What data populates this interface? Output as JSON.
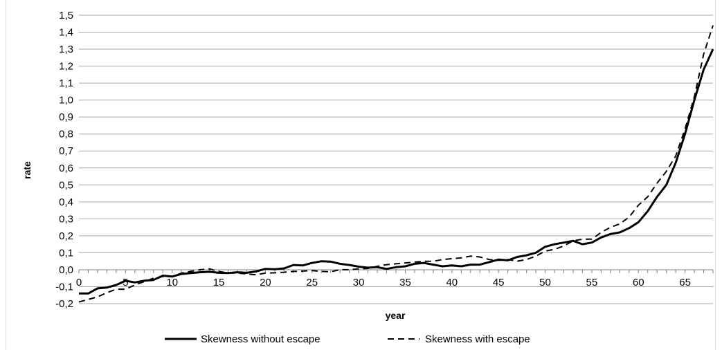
{
  "chart_data": {
    "type": "line",
    "title": "",
    "xlabel": "year",
    "ylabel": "rate",
    "xlim": [
      0,
      68
    ],
    "ylim": [
      -0.2,
      1.5
    ],
    "x_ticks": [
      0,
      5,
      10,
      15,
      20,
      25,
      30,
      35,
      40,
      45,
      50,
      55,
      60,
      65
    ],
    "x_tick_labels": [
      "0",
      "5",
      "10",
      "15",
      "20",
      "25",
      "30",
      "35",
      "40",
      "45",
      "50",
      "55",
      "60",
      "65"
    ],
    "y_ticks": [
      -0.2,
      -0.1,
      0.0,
      0.1,
      0.2,
      0.3,
      0.4,
      0.5,
      0.6,
      0.7,
      0.8,
      0.9,
      1.0,
      1.1,
      1.2,
      1.3,
      1.4,
      1.5
    ],
    "y_tick_labels": [
      "-0,2",
      "-0,1",
      "0,0",
      "0,1",
      "0,2",
      "0,3",
      "0,4",
      "0,5",
      "0,6",
      "0,7",
      "0,8",
      "0,9",
      "1,0",
      "1,1",
      "1,2",
      "1,3",
      "1,4",
      "1,5"
    ],
    "grid": "horizontal",
    "legend_position": "bottom",
    "series": [
      {
        "name": "Skewness without escape",
        "style": "solid",
        "color": "#000000",
        "x": [
          0,
          1,
          2,
          3,
          4,
          5,
          6,
          7,
          8,
          9,
          10,
          11,
          12,
          13,
          14,
          15,
          16,
          17,
          18,
          19,
          20,
          21,
          22,
          23,
          24,
          25,
          26,
          27,
          28,
          29,
          30,
          31,
          32,
          33,
          34,
          35,
          36,
          37,
          38,
          39,
          40,
          41,
          42,
          43,
          44,
          45,
          46,
          47,
          48,
          49,
          50,
          51,
          52,
          53,
          54,
          55,
          56,
          57,
          58,
          59,
          60,
          61,
          62,
          63,
          64,
          65,
          66,
          67,
          68
        ],
        "values": [
          -0.14,
          -0.14,
          -0.11,
          -0.105,
          -0.09,
          -0.065,
          -0.075,
          -0.065,
          -0.06,
          -0.035,
          -0.04,
          -0.025,
          -0.02,
          -0.015,
          -0.012,
          -0.018,
          -0.02,
          -0.015,
          -0.018,
          -0.01,
          0.005,
          0.003,
          0.008,
          0.028,
          0.025,
          0.04,
          0.05,
          0.048,
          0.035,
          0.028,
          0.018,
          0.012,
          0.015,
          0.005,
          0.015,
          0.02,
          0.035,
          0.04,
          0.03,
          0.02,
          0.025,
          0.02,
          0.03,
          0.03,
          0.045,
          0.06,
          0.055,
          0.075,
          0.085,
          0.1,
          0.135,
          0.15,
          0.16,
          0.17,
          0.15,
          0.16,
          0.19,
          0.21,
          0.22,
          0.245,
          0.28,
          0.345,
          0.43,
          0.5,
          0.63,
          0.8,
          1.0,
          1.18,
          1.3
        ]
      },
      {
        "name": "Skewness with escape",
        "style": "dashed",
        "color": "#000000",
        "x": [
          0,
          1,
          2,
          3,
          4,
          5,
          6,
          7,
          8,
          9,
          10,
          11,
          12,
          13,
          14,
          15,
          16,
          17,
          18,
          19,
          20,
          21,
          22,
          23,
          24,
          25,
          26,
          27,
          28,
          29,
          30,
          31,
          32,
          33,
          34,
          35,
          36,
          37,
          38,
          39,
          40,
          41,
          42,
          43,
          44,
          45,
          46,
          47,
          48,
          49,
          50,
          51,
          52,
          53,
          54,
          55,
          56,
          57,
          58,
          59,
          60,
          61,
          62,
          63,
          64,
          65,
          66,
          67,
          68
        ],
        "values": [
          -0.19,
          -0.175,
          -0.16,
          -0.135,
          -0.115,
          -0.115,
          -0.09,
          -0.07,
          -0.05,
          -0.04,
          -0.04,
          -0.02,
          -0.01,
          0.0,
          0.005,
          -0.01,
          -0.02,
          -0.02,
          -0.025,
          -0.03,
          -0.02,
          -0.018,
          -0.015,
          -0.01,
          -0.008,
          -0.005,
          -0.01,
          -0.012,
          0.0,
          0.0,
          0.005,
          0.008,
          0.02,
          0.03,
          0.035,
          0.04,
          0.045,
          0.05,
          0.05,
          0.06,
          0.065,
          0.07,
          0.08,
          0.075,
          0.06,
          0.055,
          0.06,
          0.05,
          0.06,
          0.08,
          0.11,
          0.12,
          0.14,
          0.17,
          0.18,
          0.18,
          0.22,
          0.25,
          0.27,
          0.31,
          0.38,
          0.43,
          0.51,
          0.58,
          0.67,
          0.83,
          1.02,
          1.27,
          1.44
        ]
      }
    ]
  }
}
